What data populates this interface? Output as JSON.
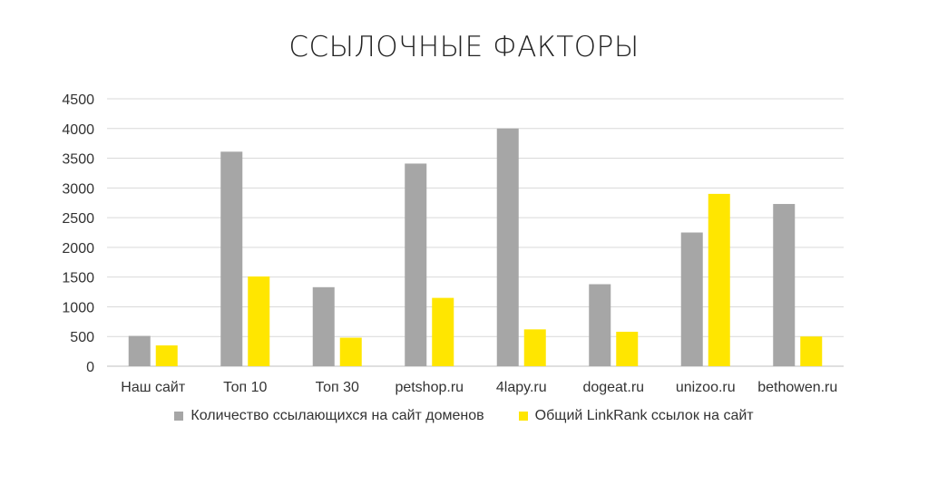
{
  "chart_data": {
    "type": "bar",
    "title": "ССЫЛОЧНЫЕ ФАКТОРЫ",
    "categories": [
      "Наш сайт",
      "Топ 10",
      "Топ 30",
      "petshop.ru",
      "4lapy.ru",
      "dogeat.ru",
      "unizoo.ru",
      "bethowen.ru"
    ],
    "series": [
      {
        "name": "Количество ссылающихся на сайт доменов",
        "color": "#A6A6A6",
        "values": [
          510,
          3610,
          1330,
          3410,
          4000,
          1380,
          2250,
          2730
        ]
      },
      {
        "name": "Общий LinkRank ссылок на сайт",
        "color": "#FFE600",
        "values": [
          350,
          1510,
          480,
          1150,
          620,
          580,
          2900,
          500
        ]
      }
    ],
    "ylim": [
      0,
      4500
    ],
    "yticks": [
      0,
      500,
      1000,
      1500,
      2000,
      2500,
      3000,
      3500,
      4000,
      4500
    ],
    "grid": true,
    "legend_position": "bottom"
  }
}
